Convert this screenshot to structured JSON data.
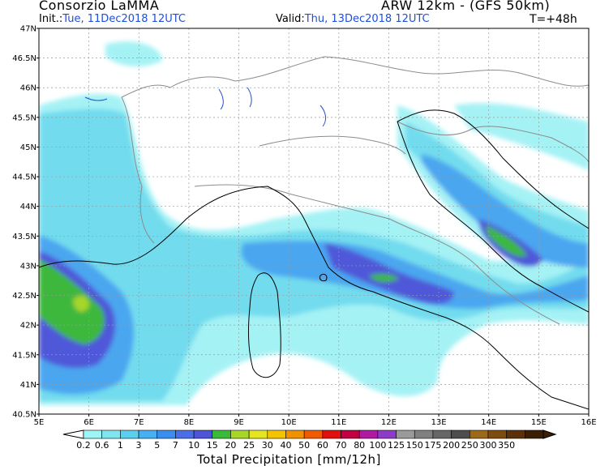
{
  "header": {
    "organization": "Consorzio LaMMA",
    "model": "ARW 12km - (GFS 50km)",
    "init_label": "Init.:",
    "init_value": "Tue, 11Dec2018 12UTC",
    "valid_label": "Valid:",
    "valid_value": "Thu, 13Dec2018 12UTC",
    "lead_time": "T=+48h"
  },
  "map": {
    "lat_labels": [
      "47N",
      "46.5N",
      "46N",
      "45.5N",
      "45N",
      "44.5N",
      "44N",
      "43.5N",
      "43N",
      "42.5N",
      "42N",
      "41.5N",
      "41N",
      "40.5N"
    ],
    "lon_labels": [
      "5E",
      "6E",
      "7E",
      "8E",
      "9E",
      "10E",
      "11E",
      "12E",
      "13E",
      "14E",
      "15E",
      "16E"
    ],
    "lat_range": [
      40.5,
      47
    ],
    "lon_range": [
      5,
      16
    ],
    "land_color": "#ffffff",
    "border_color": "#8c8c8c",
    "coast_color": "#000000"
  },
  "colorbar": {
    "title": "Total Precipitation [mm/12h]",
    "levels": [
      "0.2",
      "0.6",
      "1",
      "3",
      "5",
      "7",
      "10",
      "15",
      "20",
      "25",
      "30",
      "40",
      "50",
      "60",
      "70",
      "80",
      "100",
      "125",
      "150",
      "175",
      "200",
      "250",
      "300",
      "350"
    ],
    "colors": [
      "#9ef5f5",
      "#7fe6f0",
      "#5ccfee",
      "#46b0f0",
      "#3a8ef0",
      "#4a6ee8",
      "#4f53d8",
      "#3aba3a",
      "#a7d629",
      "#e6e620",
      "#f5c400",
      "#f09200",
      "#f05a00",
      "#e01010",
      "#c00040",
      "#b01aa0",
      "#8e3cc8",
      "#9a9a9a",
      "#808080",
      "#666666",
      "#4d4d4d",
      "#9a6a1a",
      "#7d4c10",
      "#5c3008",
      "#3a1f05"
    ]
  }
}
